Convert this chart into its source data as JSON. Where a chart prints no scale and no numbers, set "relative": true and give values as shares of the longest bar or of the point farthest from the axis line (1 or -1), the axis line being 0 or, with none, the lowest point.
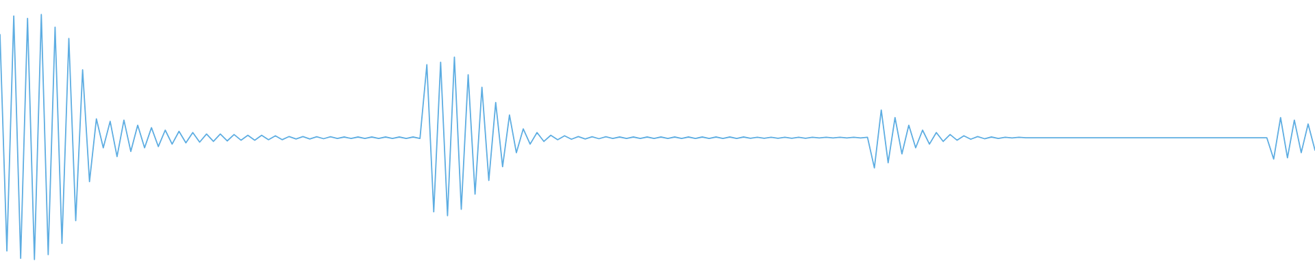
{
  "chart_data": {
    "type": "line",
    "relative": true,
    "categories": [
      null,
      null,
      null,
      null,
      null,
      null,
      null,
      null,
      null,
      null,
      null,
      null,
      null,
      null,
      null,
      null,
      null,
      null,
      null,
      null,
      null,
      null,
      null,
      null,
      null,
      null,
      null,
      null,
      null,
      null,
      null,
      null,
      null,
      null,
      null,
      null,
      null,
      null,
      null,
      null,
      null,
      null,
      null,
      null,
      null,
      null,
      null,
      null,
      null,
      null,
      null,
      null,
      null,
      null,
      null,
      null,
      null,
      null,
      null,
      null,
      null,
      null,
      null,
      null,
      null,
      null,
      null,
      null,
      null,
      null,
      null,
      null,
      null,
      null,
      null,
      null,
      null,
      null,
      null,
      null,
      null,
      null,
      null,
      null,
      null,
      null,
      null,
      null,
      null,
      null,
      null,
      null,
      null,
      null,
      null,
      null,
      null,
      null,
      null,
      null,
      null,
      null,
      null,
      null,
      null,
      null,
      null,
      null,
      null,
      null,
      null,
      null,
      null,
      null,
      null,
      null,
      null,
      null,
      null,
      null,
      null,
      null,
      null,
      null,
      null,
      null,
      null,
      null,
      null,
      null,
      null,
      null,
      null,
      null,
      null,
      null,
      null,
      null,
      null,
      null,
      null,
      null,
      null,
      null,
      null,
      null,
      null,
      null,
      null,
      null,
      null,
      null,
      null,
      null,
      null,
      null,
      null,
      null,
      null,
      null,
      null,
      null,
      null,
      null,
      null,
      null,
      null,
      null,
      null,
      null,
      null,
      null,
      null,
      null,
      null,
      null,
      null,
      null,
      null,
      null,
      null,
      null,
      null,
      null,
      null,
      null,
      null,
      null,
      null,
      null,
      null,
      null
    ],
    "series": [
      {
        "color": "#5dade2",
        "values": [
          0.918,
          0.035,
          0.994,
          0.005,
          0.984,
          0,
          1,
          0.02,
          0.948,
          0.066,
          0.902,
          0.159,
          0.774,
          0.318,
          0.574,
          0.456,
          0.564,
          0.42,
          0.569,
          0.441,
          0.548,
          0.456,
          0.538,
          0.461,
          0.528,
          0.471,
          0.523,
          0.476,
          0.518,
          0.479,
          0.512,
          0.482,
          0.512,
          0.484,
          0.51,
          0.487,
          0.507,
          0.487,
          0.507,
          0.489,
          0.505,
          0.489,
          0.502,
          0.492,
          0.502,
          0.492,
          0.501,
          0.493,
          0.501,
          0.494,
          0.5,
          0.494,
          0.5,
          0.494,
          0.5,
          0.494,
          0.5,
          0.494,
          0.5,
          0.494,
          0.5,
          0.494,
          0.795,
          0.195,
          0.805,
          0.179,
          0.826,
          0.205,
          0.754,
          0.267,
          0.703,
          0.323,
          0.641,
          0.379,
          0.59,
          0.436,
          0.533,
          0.471,
          0.518,
          0.482,
          0.507,
          0.489,
          0.505,
          0.491,
          0.502,
          0.492,
          0.501,
          0.493,
          0.501,
          0.494,
          0.5,
          0.494,
          0.5,
          0.494,
          0.5,
          0.494,
          0.5,
          0.494,
          0.5,
          0.494,
          0.5,
          0.494,
          0.5,
          0.494,
          0.5,
          0.494,
          0.5,
          0.494,
          0.5,
          0.495,
          0.499,
          0.495,
          0.499,
          0.495,
          0.499,
          0.495,
          0.499,
          0.495,
          0.499,
          0.496,
          0.499,
          0.496,
          0.499,
          0.496,
          0.499,
          0.496,
          0.499,
          0.374,
          0.61,
          0.395,
          0.579,
          0.431,
          0.548,
          0.456,
          0.528,
          0.471,
          0.518,
          0.482,
          0.51,
          0.487,
          0.505,
          0.491,
          0.502,
          0.493,
          0.5,
          0.494,
          0.499,
          0.496,
          0.499,
          0.497,
          0.497,
          0.497,
          0.497,
          0.497,
          0.497,
          0.497,
          0.497,
          0.497,
          0.497,
          0.497,
          0.497,
          0.497,
          0.497,
          0.497,
          0.497,
          0.497,
          0.497,
          0.497,
          0.497,
          0.497,
          0.497,
          0.497,
          0.497,
          0.497,
          0.497,
          0.497,
          0.497,
          0.497,
          0.497,
          0.497,
          0.497,
          0.497,
          0.497,
          0.497,
          0.497,
          0.41,
          0.579,
          0.415,
          0.569,
          0.436,
          0.553,
          0.446
        ]
      }
    ]
  }
}
